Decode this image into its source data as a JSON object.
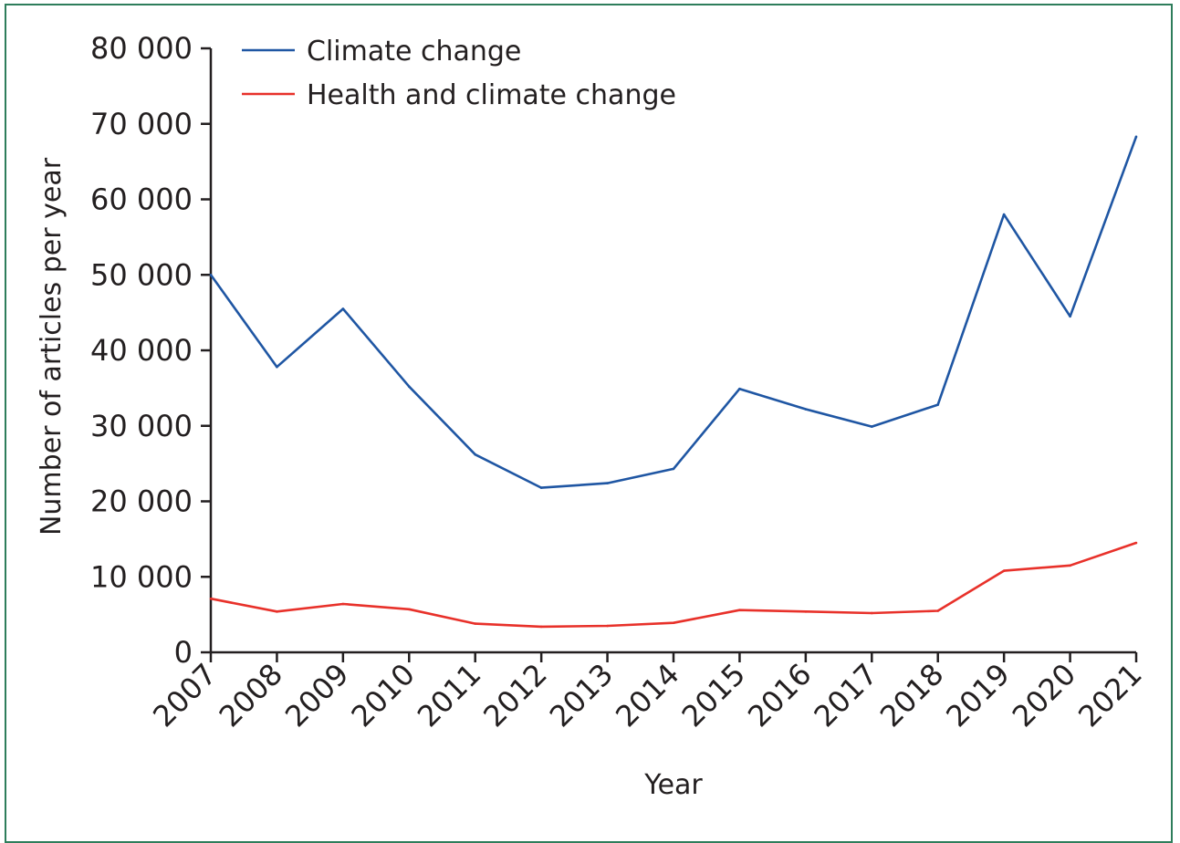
{
  "chart_data": {
    "type": "line",
    "title": "",
    "xlabel": "Year",
    "ylabel": "Number of articles per year",
    "x": [
      "2007",
      "2008",
      "2009",
      "2010",
      "2011",
      "2012",
      "2013",
      "2014",
      "2015",
      "2016",
      "2017",
      "2018",
      "2019",
      "2020",
      "2021"
    ],
    "ylim": [
      0,
      80000
    ],
    "y_ticks": [
      0,
      10000,
      20000,
      30000,
      40000,
      50000,
      60000,
      70000,
      80000
    ],
    "y_tick_labels": [
      "0",
      "10 000",
      "20 000",
      "30 000",
      "40 000",
      "50 000",
      "60 000",
      "70 000",
      "80 000"
    ],
    "grid": false,
    "legend_position": "top-left",
    "series": [
      {
        "name": "Climate change",
        "color": "#1f56a3",
        "values": [
          50000,
          37800,
          45500,
          35200,
          26200,
          21800,
          22400,
          24300,
          34900,
          32200,
          29900,
          32800,
          58000,
          44500,
          68300
        ]
      },
      {
        "name": "Health and climate change",
        "color": "#e8312a",
        "values": [
          7100,
          5400,
          6400,
          5700,
          3800,
          3400,
          3500,
          3900,
          5600,
          5400,
          5200,
          5500,
          10800,
          11500,
          14500
        ]
      }
    ]
  },
  "colors": {
    "frame_border": "#2e7d5b",
    "axis": "#231f20",
    "text": "#231f20"
  }
}
